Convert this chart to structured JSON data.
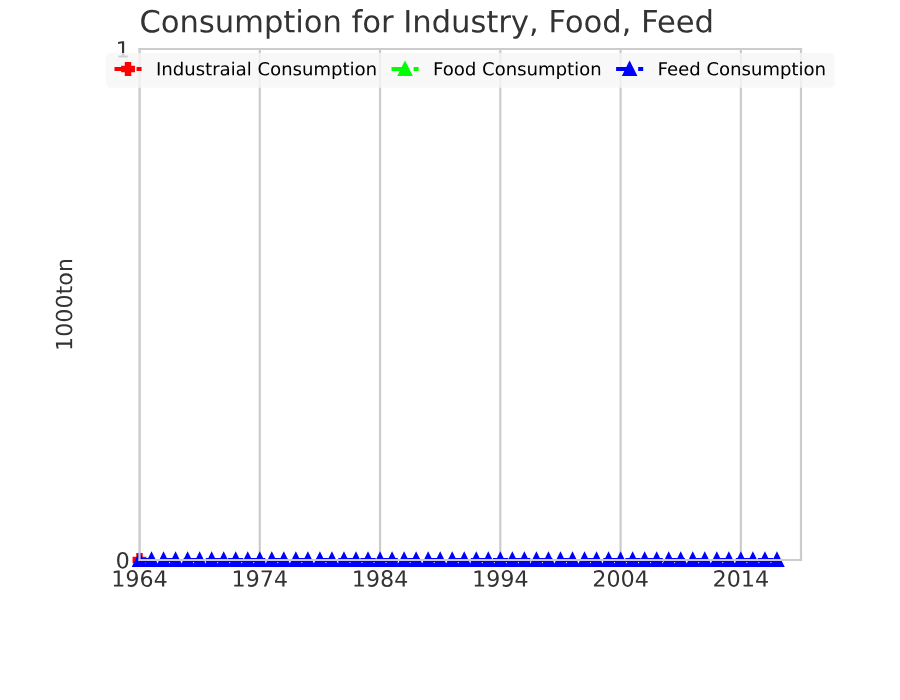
{
  "chart_data": {
    "type": "line",
    "title": "Consumption for Industry, Food, Feed",
    "ylabel": "1000ton",
    "x": [
      1964,
      1965,
      1966,
      1967,
      1968,
      1969,
      1970,
      1971,
      1972,
      1973,
      1974,
      1975,
      1976,
      1977,
      1978,
      1979,
      1980,
      1981,
      1982,
      1983,
      1984,
      1985,
      1986,
      1987,
      1988,
      1989,
      1990,
      1991,
      1992,
      1993,
      1994,
      1995,
      1996,
      1997,
      1998,
      1999,
      2000,
      2001,
      2002,
      2003,
      2004,
      2005,
      2006,
      2007,
      2008,
      2009,
      2010,
      2011,
      2012,
      2013,
      2014,
      2015,
      2016,
      2017
    ],
    "series": [
      {
        "name": "Industraial Consumption",
        "color": "#ff0000",
        "marker": "cross",
        "line_style": "dashed",
        "values": [
          0,
          null,
          null,
          null,
          null,
          null,
          null,
          null,
          null,
          null,
          null,
          null,
          null,
          null,
          null,
          null,
          null,
          null,
          null,
          null,
          null,
          null,
          null,
          null,
          null,
          null,
          null,
          null,
          null,
          null,
          null,
          null,
          null,
          null,
          null,
          null,
          null,
          null,
          null,
          null,
          null,
          null,
          null,
          null,
          null,
          null,
          null,
          null,
          null,
          null,
          null,
          null,
          null,
          null
        ]
      },
      {
        "name": "Food Consumption",
        "color": "#00ff00",
        "marker": "triangle",
        "line_style": "dashed",
        "values": [
          null,
          null,
          null,
          null,
          null,
          null,
          null,
          null,
          null,
          null,
          null,
          null,
          null,
          null,
          null,
          null,
          null,
          null,
          null,
          null,
          null,
          null,
          null,
          null,
          null,
          null,
          null,
          null,
          null,
          null,
          null,
          null,
          null,
          null,
          null,
          null,
          null,
          null,
          null,
          null,
          null,
          null,
          null,
          null,
          null,
          null,
          null,
          null,
          null,
          null,
          null,
          null,
          null,
          null
        ]
      },
      {
        "name": "Feed Consumption",
        "color": "#0000ff",
        "marker": "triangle",
        "line_style": "dashed",
        "values": [
          0,
          0,
          0,
          0,
          0,
          0,
          0,
          0,
          0,
          0,
          0,
          0,
          0,
          0,
          0,
          0,
          0,
          0,
          0,
          0,
          0,
          0,
          0,
          0,
          0,
          0,
          0,
          0,
          0,
          0,
          0,
          0,
          0,
          0,
          0,
          0,
          0,
          0,
          0,
          0,
          0,
          0,
          0,
          0,
          0,
          0,
          0,
          0,
          0,
          0,
          0,
          0,
          0,
          0
        ]
      }
    ],
    "xlim": [
      1964,
      2019
    ],
    "xticks": [
      1964,
      1974,
      1984,
      1994,
      2004,
      2014
    ],
    "ylim": [
      0,
      1
    ],
    "yticks": [
      0,
      1
    ],
    "grid": "x",
    "legend": "top"
  }
}
